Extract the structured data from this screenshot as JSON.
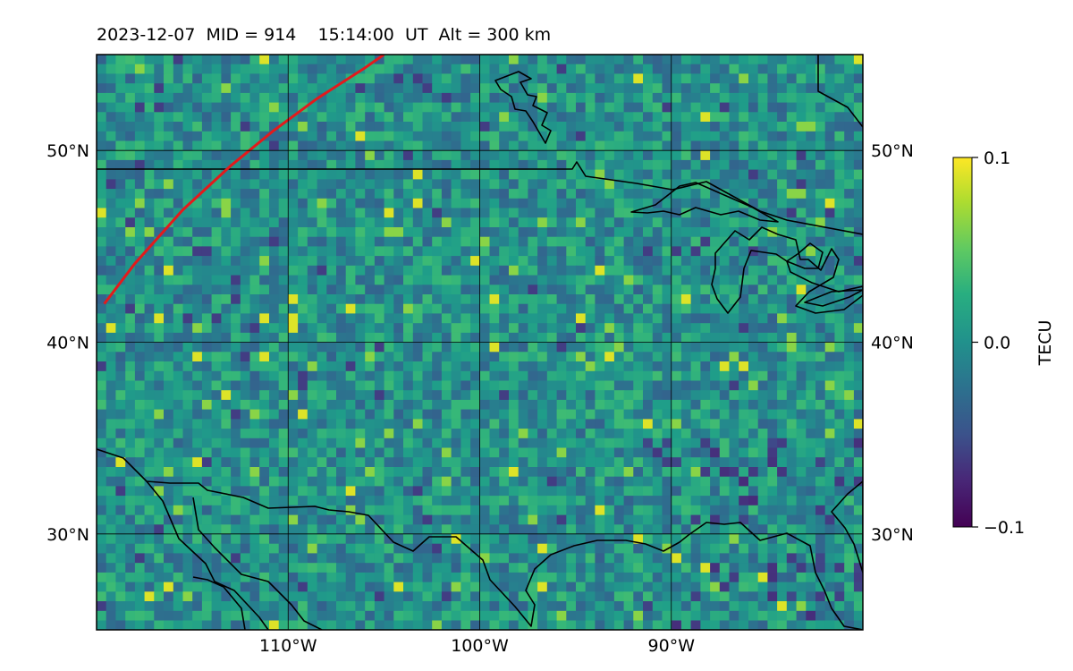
{
  "title": "2023-12-07  MID = 914    15:14:00  UT  Alt = 300 km",
  "map": {
    "projection": "equirectangular",
    "lon_range": [
      -120,
      -80
    ],
    "lat_range": [
      25,
      55
    ],
    "gridlines": true,
    "gridline_color": "#000000",
    "frame_color": "#000000",
    "lat_ticks": [
      {
        "value": 50,
        "label": "50°N"
      },
      {
        "value": 40,
        "label": "40°N"
      },
      {
        "value": 30,
        "label": "30°N"
      }
    ],
    "lon_ticks": [
      {
        "value": -110,
        "label": "110°W"
      },
      {
        "value": -100,
        "label": "100°W"
      },
      {
        "value": -90,
        "label": "90°W"
      }
    ],
    "terminator_color": "#e31a1c",
    "terminator": [
      [
        -119.6,
        42.0
      ],
      [
        -118.0,
        44.1
      ],
      [
        -115.5,
        46.9
      ],
      [
        -113.0,
        49.2
      ],
      [
        -110.8,
        51.0
      ],
      [
        -108.5,
        52.7
      ],
      [
        -106.0,
        54.3
      ],
      [
        -105.0,
        55.0
      ]
    ]
  },
  "colorbar": {
    "label": "TECU",
    "min": -0.1,
    "max": 0.1,
    "ticks": [
      {
        "value": 0.1,
        "label": "0.1"
      },
      {
        "value": 0.0,
        "label": "0.0"
      },
      {
        "value": -0.1,
        "label": "−0.1"
      }
    ],
    "colormap": "viridis"
  }
}
